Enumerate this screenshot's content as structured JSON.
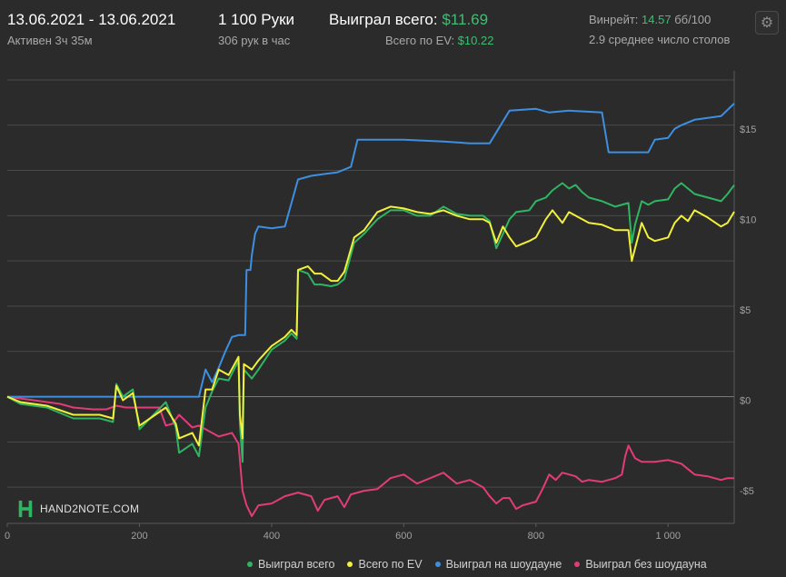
{
  "header": {
    "date_range": "13.06.2021 - 13.06.2021",
    "active_time": "Активен 3ч 35м",
    "hands": "1 100 Руки",
    "hands_per_hour": "306 рук в час",
    "won_total_label": "Выиграл всего:",
    "won_total_value": "$11.69",
    "ev_total_label": "Всего по EV:",
    "ev_total_value": "$10.22",
    "winrate_label": "Винрейт:",
    "winrate_value": "14.57",
    "winrate_unit": "бб/100",
    "avg_tables": "2.9 среднее число столов",
    "settings_icon": "gear-icon"
  },
  "watermark": {
    "text": "HAND2NOTE.COM"
  },
  "colors": {
    "background": "#2b2b2b",
    "grid": "#4a4a4a",
    "won_total": "#2fb562",
    "ev_total": "#f2f03a",
    "showdown": "#3d8fe0",
    "non_showdown": "#e23c78",
    "positive": "#3dbf73"
  },
  "chart_data": {
    "type": "line",
    "xlim": [
      0,
      1100
    ],
    "ylim": [
      -7,
      18
    ],
    "x_ticks": [
      0,
      200,
      400,
      600,
      800,
      1000
    ],
    "x_tick_labels": [
      "0",
      "200",
      "400",
      "600",
      "800",
      "1 000"
    ],
    "y_ticks": [
      15,
      10,
      5,
      0,
      -5
    ],
    "y_tick_labels": [
      "$15",
      "$10",
      "$5",
      "$0",
      "-$5"
    ],
    "grid": true,
    "legend_position": "bottom",
    "series": [
      {
        "name": "Выиграл всего",
        "color": "#2fb562",
        "points": [
          [
            0,
            0
          ],
          [
            20,
            -0.4
          ],
          [
            60,
            -0.6
          ],
          [
            100,
            -1.2
          ],
          [
            140,
            -1.2
          ],
          [
            160,
            -1.4
          ],
          [
            165,
            0.7
          ],
          [
            175,
            0
          ],
          [
            190,
            0.4
          ],
          [
            200,
            -1.8
          ],
          [
            240,
            -0.3
          ],
          [
            255,
            -1.7
          ],
          [
            260,
            -3.1
          ],
          [
            280,
            -2.6
          ],
          [
            290,
            -3.3
          ],
          [
            300,
            -0.6
          ],
          [
            310,
            0.3
          ],
          [
            320,
            1.0
          ],
          [
            335,
            0.9
          ],
          [
            350,
            2.0
          ],
          [
            352,
            -1.5
          ],
          [
            356,
            -3.6
          ],
          [
            358,
            1.5
          ],
          [
            370,
            1.0
          ],
          [
            380,
            1.5
          ],
          [
            400,
            2.6
          ],
          [
            420,
            3.1
          ],
          [
            430,
            3.5
          ],
          [
            438,
            3.2
          ],
          [
            440,
            7.0
          ],
          [
            455,
            6.8
          ],
          [
            465,
            6.2
          ],
          [
            475,
            6.2
          ],
          [
            490,
            6.1
          ],
          [
            500,
            6.2
          ],
          [
            510,
            6.5
          ],
          [
            525,
            8.5
          ],
          [
            540,
            9.0
          ],
          [
            560,
            9.8
          ],
          [
            580,
            10.3
          ],
          [
            600,
            10.3
          ],
          [
            620,
            10.0
          ],
          [
            640,
            10.0
          ],
          [
            660,
            10.5
          ],
          [
            680,
            10.1
          ],
          [
            700,
            10.0
          ],
          [
            720,
            10.0
          ],
          [
            730,
            9.7
          ],
          [
            740,
            8.2
          ],
          [
            750,
            9.0
          ],
          [
            760,
            9.8
          ],
          [
            770,
            10.2
          ],
          [
            790,
            10.3
          ],
          [
            800,
            10.8
          ],
          [
            815,
            11.0
          ],
          [
            825,
            11.4
          ],
          [
            840,
            11.8
          ],
          [
            850,
            11.5
          ],
          [
            860,
            11.7
          ],
          [
            870,
            11.3
          ],
          [
            880,
            11.0
          ],
          [
            900,
            10.8
          ],
          [
            920,
            10.5
          ],
          [
            940,
            10.7
          ],
          [
            945,
            8.5
          ],
          [
            950,
            9.5
          ],
          [
            960,
            10.8
          ],
          [
            970,
            10.6
          ],
          [
            980,
            10.8
          ],
          [
            1000,
            10.9
          ],
          [
            1010,
            11.5
          ],
          [
            1020,
            11.8
          ],
          [
            1030,
            11.5
          ],
          [
            1040,
            11.2
          ],
          [
            1060,
            11.0
          ],
          [
            1080,
            10.8
          ],
          [
            1090,
            11.2
          ],
          [
            1100,
            11.69
          ]
        ]
      },
      {
        "name": "Всего по EV",
        "color": "#f2f03a",
        "points": [
          [
            0,
            0
          ],
          [
            20,
            -0.3
          ],
          [
            60,
            -0.5
          ],
          [
            100,
            -1.0
          ],
          [
            140,
            -1.0
          ],
          [
            160,
            -1.2
          ],
          [
            165,
            0.6
          ],
          [
            175,
            -0.2
          ],
          [
            190,
            0.2
          ],
          [
            200,
            -1.6
          ],
          [
            240,
            -0.6
          ],
          [
            255,
            -1.5
          ],
          [
            260,
            -2.3
          ],
          [
            280,
            -2.0
          ],
          [
            290,
            -2.7
          ],
          [
            300,
            0.4
          ],
          [
            310,
            0.4
          ],
          [
            320,
            1.5
          ],
          [
            335,
            1.2
          ],
          [
            350,
            2.2
          ],
          [
            352,
            -1.0
          ],
          [
            356,
            -2.3
          ],
          [
            358,
            1.8
          ],
          [
            370,
            1.5
          ],
          [
            380,
            2.0
          ],
          [
            400,
            2.8
          ],
          [
            420,
            3.3
          ],
          [
            430,
            3.7
          ],
          [
            438,
            3.4
          ],
          [
            440,
            7.0
          ],
          [
            455,
            7.2
          ],
          [
            465,
            6.8
          ],
          [
            475,
            6.8
          ],
          [
            490,
            6.4
          ],
          [
            500,
            6.4
          ],
          [
            510,
            6.9
          ],
          [
            525,
            8.8
          ],
          [
            540,
            9.2
          ],
          [
            560,
            10.2
          ],
          [
            580,
            10.5
          ],
          [
            600,
            10.4
          ],
          [
            620,
            10.2
          ],
          [
            640,
            10.1
          ],
          [
            660,
            10.3
          ],
          [
            680,
            10.0
          ],
          [
            700,
            9.8
          ],
          [
            720,
            9.8
          ],
          [
            730,
            9.6
          ],
          [
            740,
            8.5
          ],
          [
            750,
            9.4
          ],
          [
            760,
            8.8
          ],
          [
            770,
            8.3
          ],
          [
            790,
            8.6
          ],
          [
            800,
            8.8
          ],
          [
            815,
            9.8
          ],
          [
            825,
            10.3
          ],
          [
            840,
            9.6
          ],
          [
            850,
            10.2
          ],
          [
            860,
            10.0
          ],
          [
            870,
            9.8
          ],
          [
            880,
            9.6
          ],
          [
            900,
            9.5
          ],
          [
            920,
            9.2
          ],
          [
            940,
            9.2
          ],
          [
            945,
            7.5
          ],
          [
            950,
            8.2
          ],
          [
            960,
            9.6
          ],
          [
            970,
            8.8
          ],
          [
            980,
            8.6
          ],
          [
            1000,
            8.8
          ],
          [
            1010,
            9.6
          ],
          [
            1020,
            10.0
          ],
          [
            1030,
            9.7
          ],
          [
            1040,
            10.3
          ],
          [
            1060,
            9.9
          ],
          [
            1080,
            9.4
          ],
          [
            1090,
            9.6
          ],
          [
            1100,
            10.22
          ]
        ]
      },
      {
        "name": "Выиграл на шоудауне",
        "color": "#3d8fe0",
        "points": [
          [
            0,
            0
          ],
          [
            150,
            0
          ],
          [
            200,
            0
          ],
          [
            250,
            0
          ],
          [
            290,
            0
          ],
          [
            300,
            1.5
          ],
          [
            310,
            0.8
          ],
          [
            320,
            1.6
          ],
          [
            330,
            2.5
          ],
          [
            340,
            3.3
          ],
          [
            350,
            3.4
          ],
          [
            360,
            3.4
          ],
          [
            362,
            7.0
          ],
          [
            368,
            7.0
          ],
          [
            370,
            7.8
          ],
          [
            375,
            9.0
          ],
          [
            380,
            9.4
          ],
          [
            400,
            9.3
          ],
          [
            420,
            9.4
          ],
          [
            440,
            12.0
          ],
          [
            460,
            12.2
          ],
          [
            480,
            12.3
          ],
          [
            500,
            12.4
          ],
          [
            520,
            12.7
          ],
          [
            530,
            14.2
          ],
          [
            560,
            14.2
          ],
          [
            600,
            14.2
          ],
          [
            660,
            14.1
          ],
          [
            700,
            14.0
          ],
          [
            730,
            14.0
          ],
          [
            760,
            15.8
          ],
          [
            800,
            15.9
          ],
          [
            820,
            15.7
          ],
          [
            850,
            15.8
          ],
          [
            900,
            15.7
          ],
          [
            910,
            13.5
          ],
          [
            950,
            13.5
          ],
          [
            970,
            13.5
          ],
          [
            980,
            14.2
          ],
          [
            1000,
            14.3
          ],
          [
            1010,
            14.8
          ],
          [
            1020,
            15.0
          ],
          [
            1040,
            15.3
          ],
          [
            1060,
            15.4
          ],
          [
            1080,
            15.5
          ],
          [
            1100,
            16.2
          ]
        ]
      },
      {
        "name": "Выиграл без шоудауна",
        "color": "#e23c78",
        "points": [
          [
            0,
            0
          ],
          [
            40,
            -0.2
          ],
          [
            80,
            -0.4
          ],
          [
            100,
            -0.6
          ],
          [
            130,
            -0.7
          ],
          [
            150,
            -0.7
          ],
          [
            165,
            -0.5
          ],
          [
            180,
            -0.6
          ],
          [
            200,
            -0.6
          ],
          [
            230,
            -0.6
          ],
          [
            240,
            -1.6
          ],
          [
            250,
            -1.5
          ],
          [
            260,
            -1.0
          ],
          [
            280,
            -1.7
          ],
          [
            290,
            -1.6
          ],
          [
            300,
            -1.8
          ],
          [
            320,
            -2.2
          ],
          [
            340,
            -2.0
          ],
          [
            350,
            -2.6
          ],
          [
            356,
            -5.2
          ],
          [
            362,
            -6.0
          ],
          [
            370,
            -6.6
          ],
          [
            380,
            -6.0
          ],
          [
            400,
            -5.9
          ],
          [
            420,
            -5.5
          ],
          [
            440,
            -5.3
          ],
          [
            460,
            -5.5
          ],
          [
            470,
            -6.3
          ],
          [
            480,
            -5.7
          ],
          [
            500,
            -5.5
          ],
          [
            510,
            -6.1
          ],
          [
            520,
            -5.4
          ],
          [
            540,
            -5.2
          ],
          [
            560,
            -5.1
          ],
          [
            580,
            -4.5
          ],
          [
            600,
            -4.3
          ],
          [
            620,
            -4.8
          ],
          [
            640,
            -4.5
          ],
          [
            660,
            -4.2
          ],
          [
            680,
            -4.8
          ],
          [
            700,
            -4.6
          ],
          [
            720,
            -5.0
          ],
          [
            730,
            -5.5
          ],
          [
            740,
            -5.9
          ],
          [
            750,
            -5.6
          ],
          [
            760,
            -5.6
          ],
          [
            770,
            -6.2
          ],
          [
            780,
            -6.0
          ],
          [
            800,
            -5.8
          ],
          [
            810,
            -5.1
          ],
          [
            820,
            -4.3
          ],
          [
            830,
            -4.6
          ],
          [
            840,
            -4.2
          ],
          [
            850,
            -4.3
          ],
          [
            860,
            -4.4
          ],
          [
            870,
            -4.7
          ],
          [
            880,
            -4.6
          ],
          [
            900,
            -4.7
          ],
          [
            920,
            -4.5
          ],
          [
            930,
            -4.3
          ],
          [
            935,
            -3.3
          ],
          [
            940,
            -2.7
          ],
          [
            950,
            -3.4
          ],
          [
            960,
            -3.6
          ],
          [
            980,
            -3.6
          ],
          [
            1000,
            -3.5
          ],
          [
            1020,
            -3.7
          ],
          [
            1040,
            -4.3
          ],
          [
            1060,
            -4.4
          ],
          [
            1080,
            -4.6
          ],
          [
            1090,
            -4.5
          ],
          [
            1100,
            -4.5
          ]
        ]
      }
    ]
  }
}
